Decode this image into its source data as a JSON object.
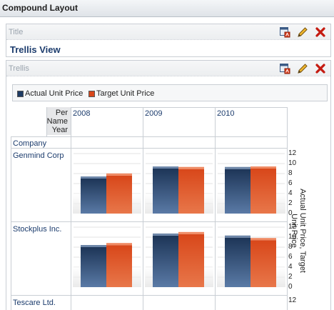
{
  "page": {
    "title": "Compound Layout"
  },
  "title_view": {
    "label": "Title",
    "heading": "Trellis View"
  },
  "trellis_view": {
    "label": "Trellis",
    "legend": [
      {
        "name": "Actual Unit Price",
        "color": "#1f3c64"
      },
      {
        "name": "Target Unit Price",
        "color": "#d8471a"
      }
    ],
    "header_label": [
      "Per",
      "Name",
      "Year"
    ],
    "row_header_label": "Company",
    "columns": [
      "2008",
      "2009",
      "2010"
    ],
    "rows": [
      "Genmind Corp",
      "Stockplus Inc.",
      "Tescare Ltd."
    ],
    "y_ticks": [
      "12",
      "10",
      "8",
      "6",
      "4",
      "2",
      "0"
    ],
    "axis_title": "Actual Unit Price, Target Unit Price"
  },
  "icons": {
    "properties": "properties-icon",
    "edit": "pencil-edit-icon",
    "remove": "delete-x-icon"
  },
  "chart_data": {
    "type": "bar",
    "title": "",
    "ylabel": "Actual Unit Price, Target Unit Price",
    "ylim": [
      0,
      12
    ],
    "series_names": [
      "Actual Unit Price",
      "Target Unit Price"
    ],
    "cells": [
      {
        "row": "Genmind Corp",
        "column": "2008",
        "values": [
          7,
          7.6
        ]
      },
      {
        "row": "Genmind Corp",
        "column": "2009",
        "values": [
          9,
          8.9
        ]
      },
      {
        "row": "Genmind Corp",
        "column": "2010",
        "values": [
          8.9,
          9
        ]
      },
      {
        "row": "Stockplus Inc.",
        "column": "2008",
        "values": [
          8,
          8.4
        ]
      },
      {
        "row": "Stockplus Inc.",
        "column": "2009",
        "values": [
          10.3,
          10.6
        ]
      },
      {
        "row": "Stockplus Inc.",
        "column": "2010",
        "values": [
          9.9,
          9.4
        ]
      }
    ]
  }
}
